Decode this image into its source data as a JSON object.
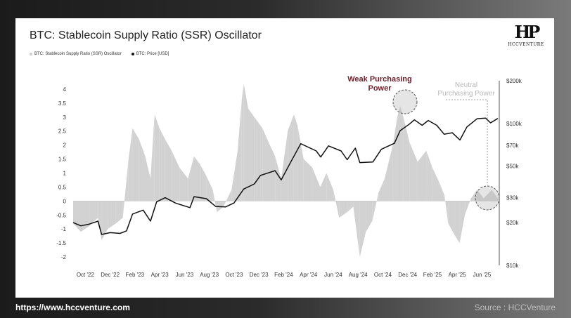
{
  "title": "BTC: Stablecoin Supply Ratio (SSR) Oscillator",
  "logo_text": "HCCVENTURE",
  "legend": [
    {
      "label": "BTC: Stablecoin Supply Ratio (SSR) Oscillator",
      "color": "#cfcfcf"
    },
    {
      "label": "BTC: Price [USD]",
      "color": "#111111"
    }
  ],
  "annotations": {
    "weak_line1": "Weak Purchasing",
    "weak_line2": "Power",
    "neutral_line1": "Neutral",
    "neutral_line2": "Purchasing Power"
  },
  "footer": {
    "url": "https://www.hccventure.com",
    "source": "Source : HCCVenture"
  },
  "colors": {
    "oscillator": "#d2d2d2",
    "price": "#111111",
    "weak_annotation": "#6b1f2a",
    "neutral_annotation": "#b9b9b9"
  },
  "chart_data": {
    "type": "area",
    "title": "BTC: Stablecoin Supply Ratio (SSR) Oscillator",
    "x_ticks": [
      "Oct '22",
      "Dec '22",
      "Feb '23",
      "Apr '23",
      "Jun '23",
      "Aug '23",
      "Oct '23",
      "Dec '23",
      "Feb '24",
      "Apr '24",
      "Jun '24",
      "Aug '24",
      "Oct '24",
      "Dec '24",
      "Feb '25",
      "Apr '25",
      "Jun '25"
    ],
    "y_left_ticks": [
      4,
      3.5,
      3,
      2.5,
      2,
      1.5,
      1,
      0.5,
      0,
      -0.5,
      -1,
      -1.5,
      -2
    ],
    "y_left_range": [
      -2.3,
      4.3
    ],
    "y_right_ticks": [
      "$200k",
      "$100k",
      "$70k",
      "$50k",
      "$30k",
      "$20k",
      "$10k"
    ],
    "y_right_values": [
      200000,
      100000,
      70000,
      50000,
      30000,
      20000,
      10000
    ],
    "y_right_scale": "log",
    "y_right_range": [
      10000,
      200000
    ],
    "x_range": [
      "2022-09-01",
      "2025-07-10"
    ],
    "series": [
      {
        "name": "BTC: Stablecoin Supply Ratio (SSR) Oscillator",
        "axis": "left",
        "points": [
          [
            "2022-09-01",
            -0.8
          ],
          [
            "2022-09-20",
            -1.1
          ],
          [
            "2022-10-10",
            -0.9
          ],
          [
            "2022-11-01",
            -0.6
          ],
          [
            "2022-11-10",
            -1.4
          ],
          [
            "2022-11-25",
            -1.0
          ],
          [
            "2022-12-15",
            -0.8
          ],
          [
            "2023-01-01",
            -0.6
          ],
          [
            "2023-01-15",
            1.5
          ],
          [
            "2023-01-25",
            2.6
          ],
          [
            "2023-02-10",
            2.2
          ],
          [
            "2023-02-25",
            1.6
          ],
          [
            "2023-03-10",
            0.8
          ],
          [
            "2023-03-20",
            3.1
          ],
          [
            "2023-04-01",
            2.6
          ],
          [
            "2023-04-15",
            2.2
          ],
          [
            "2023-05-01",
            1.8
          ],
          [
            "2023-05-20",
            1.2
          ],
          [
            "2023-06-10",
            0.8
          ],
          [
            "2023-06-25",
            1.6
          ],
          [
            "2023-07-10",
            1.3
          ],
          [
            "2023-07-25",
            0.9
          ],
          [
            "2023-08-10",
            0.4
          ],
          [
            "2023-08-20",
            -0.4
          ],
          [
            "2023-09-05",
            -0.2
          ],
          [
            "2023-09-25",
            0.4
          ],
          [
            "2023-10-10",
            1.8
          ],
          [
            "2023-10-20",
            3.6
          ],
          [
            "2023-10-25",
            4.2
          ],
          [
            "2023-11-05",
            3.3
          ],
          [
            "2023-11-20",
            3.0
          ],
          [
            "2023-12-10",
            2.6
          ],
          [
            "2023-12-25",
            2.1
          ],
          [
            "2024-01-10",
            1.6
          ],
          [
            "2024-01-25",
            0.8
          ],
          [
            "2024-02-10",
            2.5
          ],
          [
            "2024-02-25",
            3.1
          ],
          [
            "2024-03-05",
            2.7
          ],
          [
            "2024-03-20",
            1.5
          ],
          [
            "2024-04-10",
            1.2
          ],
          [
            "2024-04-30",
            0.5
          ],
          [
            "2024-05-15",
            1.0
          ],
          [
            "2024-06-01",
            0.4
          ],
          [
            "2024-06-15",
            -0.6
          ],
          [
            "2024-07-05",
            -0.4
          ],
          [
            "2024-07-20",
            -0.2
          ],
          [
            "2024-08-05",
            -2.0
          ],
          [
            "2024-08-20",
            -1.1
          ],
          [
            "2024-09-05",
            -0.7
          ],
          [
            "2024-09-20",
            0.3
          ],
          [
            "2024-10-05",
            0.8
          ],
          [
            "2024-10-25",
            2.0
          ],
          [
            "2024-11-05",
            3.0
          ],
          [
            "2024-11-12",
            3.4
          ],
          [
            "2024-11-20",
            3.0
          ],
          [
            "2024-12-05",
            2.1
          ],
          [
            "2024-12-25",
            1.4
          ],
          [
            "2025-01-15",
            1.8
          ],
          [
            "2025-01-30",
            1.2
          ],
          [
            "2025-02-15",
            0.7
          ],
          [
            "2025-03-01",
            0.2
          ],
          [
            "2025-03-10",
            -0.8
          ],
          [
            "2025-03-25",
            -1.2
          ],
          [
            "2025-04-07",
            -1.5
          ],
          [
            "2025-04-20",
            -0.5
          ],
          [
            "2025-05-05",
            0.1
          ],
          [
            "2025-05-20",
            0.4
          ],
          [
            "2025-06-05",
            0.1
          ],
          [
            "2025-06-25",
            0.4
          ],
          [
            "2025-07-10",
            0.1
          ]
        ]
      },
      {
        "name": "BTC: Price [USD]",
        "axis": "right",
        "points": [
          [
            "2022-09-01",
            20000
          ],
          [
            "2022-09-20",
            19000
          ],
          [
            "2022-10-10",
            19500
          ],
          [
            "2022-11-01",
            20500
          ],
          [
            "2022-11-10",
            16500
          ],
          [
            "2022-12-01",
            17000
          ],
          [
            "2022-12-25",
            16800
          ],
          [
            "2023-01-10",
            17500
          ],
          [
            "2023-01-25",
            23000
          ],
          [
            "2023-02-20",
            24500
          ],
          [
            "2023-03-10",
            20500
          ],
          [
            "2023-03-25",
            28000
          ],
          [
            "2023-04-15",
            30000
          ],
          [
            "2023-05-10",
            27500
          ],
          [
            "2023-06-15",
            25500
          ],
          [
            "2023-06-25",
            30500
          ],
          [
            "2023-07-25",
            29500
          ],
          [
            "2023-08-17",
            26000
          ],
          [
            "2023-09-10",
            25800
          ],
          [
            "2023-10-01",
            27500
          ],
          [
            "2023-10-25",
            34500
          ],
          [
            "2023-11-20",
            37500
          ],
          [
            "2023-12-05",
            43000
          ],
          [
            "2024-01-10",
            46500
          ],
          [
            "2024-01-25",
            40000
          ],
          [
            "2024-02-15",
            52000
          ],
          [
            "2024-03-13",
            72000
          ],
          [
            "2024-04-20",
            64000
          ],
          [
            "2024-05-01",
            58000
          ],
          [
            "2024-05-20",
            69500
          ],
          [
            "2024-06-20",
            64000
          ],
          [
            "2024-07-05",
            55500
          ],
          [
            "2024-07-25",
            67000
          ],
          [
            "2024-08-05",
            53000
          ],
          [
            "2024-09-06",
            53500
          ],
          [
            "2024-09-27",
            65800
          ],
          [
            "2024-10-29",
            72500
          ],
          [
            "2024-11-12",
            89000
          ],
          [
            "2024-12-05",
            99000
          ],
          [
            "2024-12-17",
            106000
          ],
          [
            "2025-01-05",
            97000
          ],
          [
            "2025-01-20",
            105000
          ],
          [
            "2025-02-10",
            97000
          ],
          [
            "2025-02-28",
            84000
          ],
          [
            "2025-03-20",
            86000
          ],
          [
            "2025-04-08",
            76500
          ],
          [
            "2025-04-25",
            94500
          ],
          [
            "2025-05-20",
            108000
          ],
          [
            "2025-06-10",
            109000
          ],
          [
            "2025-06-22",
            101000
          ],
          [
            "2025-07-10",
            108500
          ]
        ]
      }
    ]
  }
}
